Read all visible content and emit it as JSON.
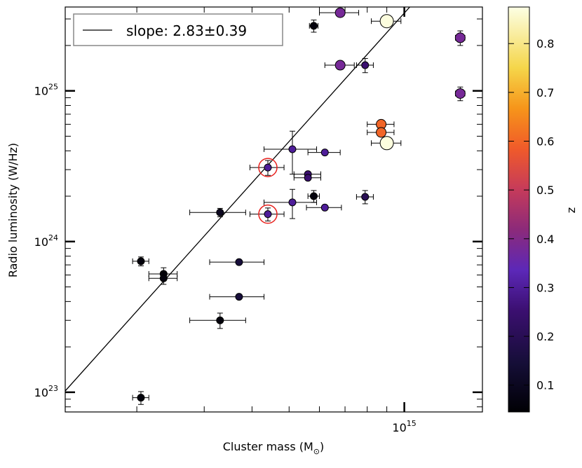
{
  "chart_data": {
    "type": "scatter",
    "xlabel": "Cluster mass (M",
    "xlabel_sub": "⊙",
    "xlabel_close": ")",
    "ylabel": "Radio luminosity (W/Hz)",
    "x_scale": "log",
    "y_scale": "log",
    "xlim": [
      130,
      1600
    ],
    "ylim": [
      0.074,
      36
    ],
    "x_units": "1e12 solar masses",
    "y_units": "1e24 W/Hz",
    "x_tick_labels": [
      {
        "base": "10",
        "exp": "15",
        "value": 1000
      }
    ],
    "y_tick_labels": [
      {
        "base": "10",
        "exp": "23",
        "value": 0.1
      },
      {
        "base": "10",
        "exp": "24",
        "value": 1
      },
      {
        "base": "10",
        "exp": "25",
        "value": 10
      }
    ],
    "legend": {
      "label": "slope: 2.83±0.39",
      "position": "top-left"
    },
    "fit_line": {
      "slope": 2.83,
      "anchor_x": 130,
      "anchor_y": 0.102
    },
    "colorbar": {
      "label": "z",
      "range": [
        0.045,
        0.875
      ],
      "tick_labels": [
        "0.1",
        "0.2",
        "0.3",
        "0.4",
        "0.5",
        "0.6",
        "0.7",
        "0.8"
      ],
      "tick_values": [
        0.1,
        0.2,
        0.3,
        0.4,
        0.5,
        0.6,
        0.7,
        0.8
      ]
    },
    "points": [
      {
        "x": 580,
        "y": 27.0,
        "z": 0.06,
        "size": "small",
        "xerr": 15,
        "ylo": 2.5,
        "yhi": 2.5
      },
      {
        "x": 680,
        "y": 33.0,
        "z": 0.38,
        "size": "medium",
        "xerr": 80,
        "ylo": 0,
        "yhi": 0
      },
      {
        "x": 900,
        "y": 29.0,
        "z": 0.87,
        "size": "large",
        "xerr": 80,
        "ylo": 0,
        "yhi": 0
      },
      {
        "x": 1400,
        "y": 22.5,
        "z": 0.38,
        "size": "medium",
        "xerr": 40,
        "ylo": 2.5,
        "yhi": 2.5
      },
      {
        "x": 680,
        "y": 14.8,
        "z": 0.38,
        "size": "medium",
        "xerr": 60,
        "ylo": 0,
        "yhi": 0
      },
      {
        "x": 790,
        "y": 14.8,
        "z": 0.25,
        "size": "small",
        "xerr": 40,
        "ylo": 1.6,
        "yhi": 1.6
      },
      {
        "x": 1400,
        "y": 9.6,
        "z": 0.38,
        "size": "medium",
        "xerr": 40,
        "ylo": 1.0,
        "yhi": 1.0
      },
      {
        "x": 870,
        "y": 6.0,
        "z": 0.6,
        "size": "medium",
        "xerr": 70,
        "ylo": 0,
        "yhi": 0
      },
      {
        "x": 870,
        "y": 5.3,
        "z": 0.6,
        "size": "medium",
        "xerr": 70,
        "ylo": 0,
        "yhi": 0
      },
      {
        "x": 900,
        "y": 4.5,
        "z": 0.87,
        "size": "large",
        "xerr": 80,
        "ylo": 0,
        "yhi": 0
      },
      {
        "x": 510,
        "y": 4.1,
        "z": 0.3,
        "size": "small",
        "xerr": 80,
        "ylo": 1.3,
        "yhi": 1.3
      },
      {
        "x": 620,
        "y": 3.9,
        "z": 0.3,
        "size": "small",
        "xerr": 60,
        "ylo": 0,
        "yhi": 0
      },
      {
        "x": 440,
        "y": 3.1,
        "z": 0.3,
        "size": "small",
        "xerr": 45,
        "ylo": 0.35,
        "yhi": 0.35,
        "ring": true
      },
      {
        "x": 560,
        "y": 2.8,
        "z": 0.25,
        "size": "small",
        "xerr": 45,
        "ylo": 0,
        "yhi": 0
      },
      {
        "x": 560,
        "y": 2.65,
        "z": 0.25,
        "size": "small",
        "xerr": 45,
        "ylo": 0,
        "yhi": 0
      },
      {
        "x": 580,
        "y": 2.0,
        "z": 0.06,
        "size": "small",
        "xerr": 20,
        "ylo": 0.18,
        "yhi": 0.18
      },
      {
        "x": 790,
        "y": 1.98,
        "z": 0.2,
        "size": "small",
        "xerr": 40,
        "ylo": 0.2,
        "yhi": 0.2
      },
      {
        "x": 510,
        "y": 1.82,
        "z": 0.3,
        "size": "small",
        "xerr": 80,
        "ylo": 0.4,
        "yhi": 0.4
      },
      {
        "x": 620,
        "y": 1.68,
        "z": 0.3,
        "size": "small",
        "xerr": 65,
        "ylo": 0,
        "yhi": 0
      },
      {
        "x": 330,
        "y": 1.56,
        "z": 0.1,
        "size": "small",
        "xerr": 55,
        "ylo": 0.1,
        "yhi": 0.1
      },
      {
        "x": 440,
        "y": 1.52,
        "z": 0.3,
        "size": "small",
        "xerr": 45,
        "ylo": 0.15,
        "yhi": 0.15,
        "ring": true
      },
      {
        "x": 205,
        "y": 0.74,
        "z": 0.06,
        "size": "small",
        "xerr": 10,
        "ylo": 0.05,
        "yhi": 0.05
      },
      {
        "x": 370,
        "y": 0.73,
        "z": 0.15,
        "size": "small",
        "xerr": 60,
        "ylo": 0,
        "yhi": 0
      },
      {
        "x": 235,
        "y": 0.61,
        "z": 0.06,
        "size": "small",
        "xerr": 20,
        "ylo": 0.06,
        "yhi": 0.06
      },
      {
        "x": 235,
        "y": 0.57,
        "z": 0.06,
        "size": "small",
        "xerr": 20,
        "ylo": 0.05,
        "yhi": 0.05
      },
      {
        "x": 370,
        "y": 0.43,
        "z": 0.15,
        "size": "small",
        "xerr": 60,
        "ylo": 0,
        "yhi": 0
      },
      {
        "x": 330,
        "y": 0.3,
        "z": 0.06,
        "size": "small",
        "xerr": 55,
        "ylo": 0.035,
        "yhi": 0.035
      },
      {
        "x": 205,
        "y": 0.092,
        "z": 0.06,
        "size": "small",
        "xerr": 10,
        "ylo": 0.009,
        "yhi": 0.009
      }
    ]
  }
}
